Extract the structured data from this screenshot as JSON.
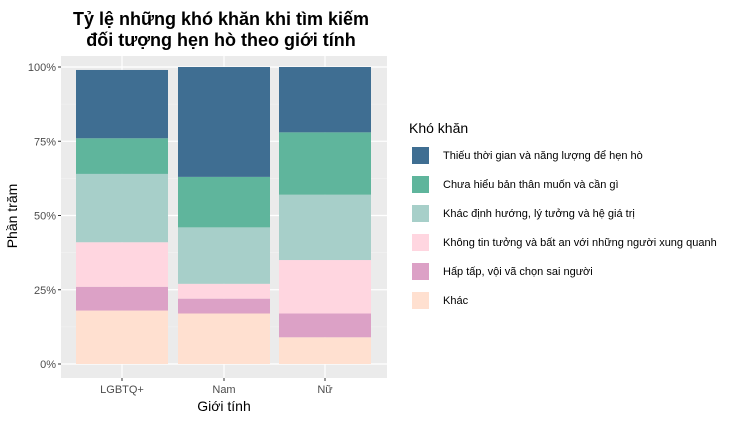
{
  "chart_data": {
    "type": "bar",
    "stacked": "percent",
    "title": [
      "Tỷ lệ những khó khăn khi tìm kiếm",
      "đối tượng hẹn hò theo giới tính"
    ],
    "xlabel": "Giới tính",
    "ylabel": "Phần trăm",
    "categories": [
      "LGBTQ+",
      "Nam",
      "Nữ"
    ],
    "y_ticks": [
      "0%",
      "25%",
      "50%",
      "75%",
      "100%"
    ],
    "ylim": [
      0,
      1
    ],
    "grid": true,
    "legend": {
      "title": "Khó khăn",
      "position": "right"
    },
    "series": [
      {
        "name": "Thiếu thời gian và năng lượng để hẹn hò",
        "color": "#3f6e92",
        "values": [
          0.23,
          0.37,
          0.22
        ]
      },
      {
        "name": "Chưa hiểu bản thân muốn và cần gì",
        "color": "#5fb59c",
        "values": [
          0.12,
          0.17,
          0.21
        ]
      },
      {
        "name": "Khác định hướng, lý tưởng và hệ giá trị",
        "color": "#a7cfc9",
        "values": [
          0.23,
          0.19,
          0.22
        ]
      },
      {
        "name": "Không tin tưởng và bất an với những người xung quanh",
        "color": "#ffd6e0",
        "values": [
          0.15,
          0.05,
          0.18
        ]
      },
      {
        "name": "Hấp tấp, vội vã chọn sai người",
        "color": "#dca1c6",
        "values": [
          0.08,
          0.05,
          0.08
        ]
      },
      {
        "name": "Khác",
        "color": "#ffe0d0",
        "values": [
          0.18,
          0.17,
          0.09
        ]
      }
    ]
  }
}
